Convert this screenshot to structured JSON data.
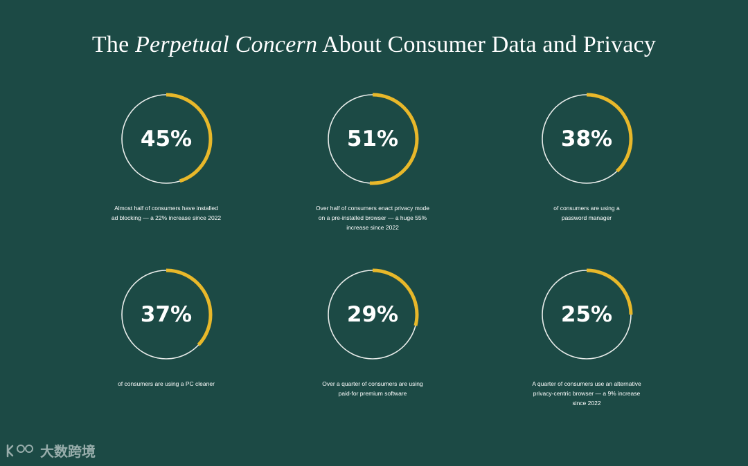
{
  "title": {
    "pre": "The ",
    "emph": "Perpetual Concern",
    "post": " About Consumer Data and Privacy"
  },
  "colors": {
    "background": "#1c4a45",
    "accent": "#e8b82a",
    "ring": "#e8ecea"
  },
  "chart_data": {
    "type": "donut",
    "stats": [
      {
        "value": 45,
        "label": "45%",
        "caption": "Almost half of consumers have installed ad blocking — a 22% increase since 2022"
      },
      {
        "value": 51,
        "label": "51%",
        "caption": "Over half of consumers enact privacy mode on a pre-installed browser — a huge 55% increase since 2022"
      },
      {
        "value": 38,
        "label": "38%",
        "caption": "of consumers are using a password manager"
      },
      {
        "value": 37,
        "label": "37%",
        "caption": "of consumers are using a PC cleaner"
      },
      {
        "value": 29,
        "label": "29%",
        "caption": "Over a quarter of consumers are using paid-for premium software"
      },
      {
        "value": 25,
        "label": "25%",
        "caption": "A quarter of consumers use an alternative privacy-centric browser — a 9% increase since 2022"
      }
    ]
  },
  "watermark": {
    "text": "大数跨境",
    "logo_icon": "k100-logo-icon"
  }
}
